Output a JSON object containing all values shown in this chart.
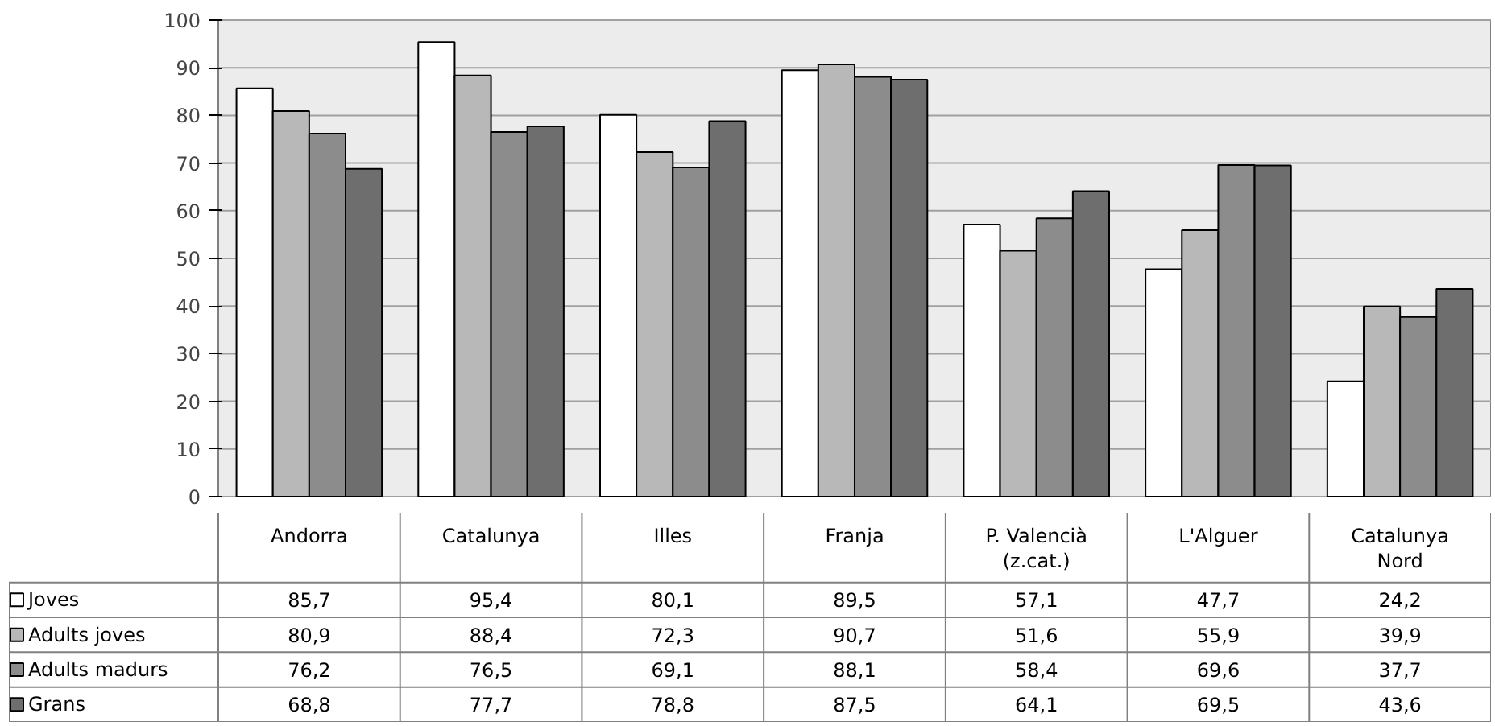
{
  "chart_data": {
    "type": "bar",
    "categories": [
      "Andorra",
      "Catalunya",
      "Illes",
      "Franja",
      "P. Valencià\n(z.cat.)",
      "L'Alguer",
      "Catalunya\nNord"
    ],
    "series": [
      {
        "name": "Joves",
        "color": "#ffffff",
        "values": [
          85.7,
          95.4,
          80.1,
          89.5,
          57.1,
          47.7,
          24.2
        ],
        "value_labels": [
          "85,7",
          "95,4",
          "80,1",
          "89,5",
          "57,1",
          "47,7",
          "24,2"
        ]
      },
      {
        "name": "Adults joves",
        "color": "#b8b8b8",
        "values": [
          80.9,
          88.4,
          72.3,
          90.7,
          51.6,
          55.9,
          39.9
        ],
        "value_labels": [
          "80,9",
          "88,4",
          "72,3",
          "90,7",
          "51,6",
          "55,9",
          "39,9"
        ]
      },
      {
        "name": "Adults madurs",
        "color": "#8c8c8c",
        "values": [
          76.2,
          76.5,
          69.1,
          88.1,
          58.4,
          69.6,
          37.7
        ],
        "value_labels": [
          "76,2",
          "76,5",
          "69,1",
          "88,1",
          "58,4",
          "69,6",
          "37,7"
        ]
      },
      {
        "name": "Grans",
        "color": "#6e6e6e",
        "values": [
          68.8,
          77.7,
          78.8,
          87.5,
          64.1,
          69.5,
          43.6
        ],
        "value_labels": [
          "68,8",
          "77,7",
          "78,8",
          "87,5",
          "64,1",
          "69,5",
          "43,6"
        ]
      }
    ],
    "ylim": [
      0,
      100
    ],
    "yticks": [
      0,
      10,
      20,
      30,
      40,
      50,
      60,
      70,
      80,
      90,
      100
    ],
    "grid": "y",
    "legend": "bottom left"
  }
}
